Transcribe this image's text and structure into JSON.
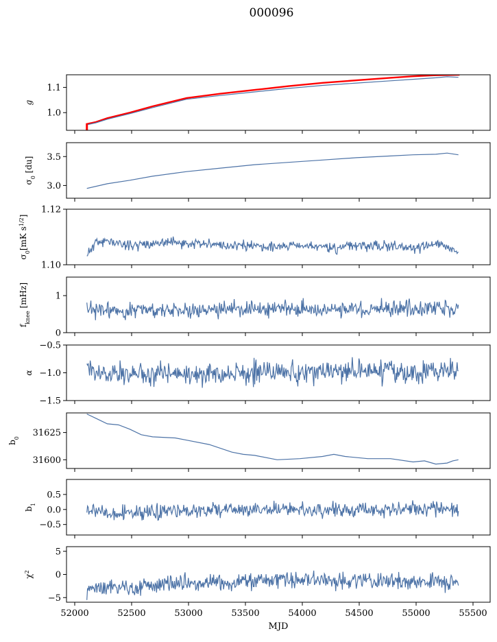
{
  "title": "000096",
  "chart_data": [
    {
      "type": "line",
      "ylabel": "g",
      "xlim": [
        51940,
        55680
      ],
      "ylim": [
        0.93,
        1.15
      ],
      "yticks": [
        1.0,
        1.1
      ],
      "ytick_labels": [
        "1.0",
        "1.1"
      ],
      "x_range": [
        52120,
        55410
      ],
      "series": [
        {
          "color": "#ff0000",
          "points": [
            [
              52120,
              0.955
            ],
            [
              52200,
              0.963
            ],
            [
              52300,
              0.978
            ],
            [
              52500,
              1.0
            ],
            [
              52700,
              1.025
            ],
            [
              53000,
              1.058
            ],
            [
              53300,
              1.075
            ],
            [
              53600,
              1.09
            ],
            [
              53900,
              1.105
            ],
            [
              54200,
              1.118
            ],
            [
              54500,
              1.128
            ],
            [
              54800,
              1.138
            ],
            [
              55000,
              1.144
            ],
            [
              55200,
              1.148
            ],
            [
              55410,
              1.15
            ]
          ]
        },
        {
          "color": "#4c72a6",
          "points": [
            [
              52120,
              0.952
            ],
            [
              52200,
              0.96
            ],
            [
              52300,
              0.974
            ],
            [
              52500,
              0.996
            ],
            [
              52700,
              1.02
            ],
            [
              53000,
              1.053
            ],
            [
              53300,
              1.068
            ],
            [
              53600,
              1.082
            ],
            [
              53900,
              1.096
            ],
            [
              54200,
              1.108
            ],
            [
              54500,
              1.117
            ],
            [
              54800,
              1.126
            ],
            [
              55000,
              1.132
            ],
            [
              55200,
              1.138
            ],
            [
              55300,
              1.142
            ],
            [
              55400,
              1.14
            ]
          ]
        }
      ]
    },
    {
      "type": "line",
      "ylabel": "σ0 [du]",
      "xlim": [
        51940,
        55680
      ],
      "ylim": [
        2.78,
        3.74
      ],
      "yticks": [
        3.0,
        3.5
      ],
      "ytick_labels": [
        "3.0",
        "3.5"
      ],
      "series": [
        {
          "color": "#4c72a6",
          "points": [
            [
              52120,
              2.95
            ],
            [
              52300,
              3.03
            ],
            [
              52500,
              3.09
            ],
            [
              52700,
              3.16
            ],
            [
              53000,
              3.24
            ],
            [
              53300,
              3.3
            ],
            [
              53600,
              3.36
            ],
            [
              53900,
              3.4
            ],
            [
              54200,
              3.44
            ],
            [
              54500,
              3.48
            ],
            [
              54800,
              3.51
            ],
            [
              55000,
              3.53
            ],
            [
              55200,
              3.54
            ],
            [
              55300,
              3.56
            ],
            [
              55400,
              3.53
            ]
          ]
        }
      ]
    },
    {
      "type": "line",
      "ylabel": "σ0[mK s1/2]",
      "xlim": [
        51940,
        55680
      ],
      "ylim": [
        1.1,
        1.12
      ],
      "yticks": [
        1.1,
        1.12
      ],
      "ytick_labels": [
        "1.10",
        "1.12"
      ],
      "series": [
        {
          "color": "#4c72a6",
          "noisy": true,
          "seed": 11,
          "amplitude": 0.0009,
          "points": [
            [
              52120,
              1.1035
            ],
            [
              52200,
              1.108
            ],
            [
              52300,
              1.1085
            ],
            [
              52500,
              1.107
            ],
            [
              52800,
              1.108
            ],
            [
              53100,
              1.1075
            ],
            [
              53400,
              1.107
            ],
            [
              53700,
              1.1065
            ],
            [
              54000,
              1.107
            ],
            [
              54300,
              1.106
            ],
            [
              54500,
              1.107
            ],
            [
              54800,
              1.1068
            ],
            [
              55000,
              1.1055
            ],
            [
              55200,
              1.108
            ],
            [
              55400,
              1.104
            ]
          ]
        }
      ]
    },
    {
      "type": "line",
      "ylabel": "fknee [mHz]",
      "xlim": [
        51940,
        55680
      ],
      "ylim": [
        0,
        1.5
      ],
      "yticks": [
        0,
        1
      ],
      "ytick_labels": [
        "0",
        "1"
      ],
      "series": [
        {
          "color": "#4c72a6",
          "noisy": true,
          "seed": 23,
          "amplitude": 0.11,
          "points": [
            [
              52120,
              0.6
            ],
            [
              53000,
              0.62
            ],
            [
              54000,
              0.64
            ],
            [
              55000,
              0.65
            ],
            [
              55400,
              0.62
            ]
          ]
        }
      ]
    },
    {
      "type": "line",
      "ylabel": "α",
      "xlim": [
        51940,
        55680
      ],
      "ylim": [
        -1.5,
        -0.5
      ],
      "yticks": [
        -1.5,
        -1.0,
        -0.5
      ],
      "ytick_labels": [
        "−1.5",
        "−1.0",
        "−0.5"
      ],
      "series": [
        {
          "color": "#4c72a6",
          "noisy": true,
          "seed": 37,
          "amplitude": 0.1,
          "points": [
            [
              52120,
              -1.0
            ],
            [
              53000,
              -1.02
            ],
            [
              54000,
              -1.0
            ],
            [
              55400,
              -0.98
            ]
          ]
        }
      ]
    },
    {
      "type": "line",
      "ylabel": "b0",
      "xlim": [
        51940,
        55680
      ],
      "ylim": [
        31592,
        31643
      ],
      "yticks": [
        31600,
        31625
      ],
      "ytick_labels": [
        "31600",
        "31625"
      ],
      "series": [
        {
          "color": "#4c72a6",
          "points": [
            [
              52120,
              31642
            ],
            [
              52200,
              31638
            ],
            [
              52300,
              31633
            ],
            [
              52400,
              31632
            ],
            [
              52500,
              31628
            ],
            [
              52600,
              31623
            ],
            [
              52700,
              31621
            ],
            [
              52900,
              31620
            ],
            [
              53000,
              31618
            ],
            [
              53200,
              31614
            ],
            [
              53400,
              31607
            ],
            [
              53500,
              31605
            ],
            [
              53600,
              31604
            ],
            [
              53800,
              31600
            ],
            [
              54000,
              31601
            ],
            [
              54200,
              31603
            ],
            [
              54300,
              31605
            ],
            [
              54400,
              31603
            ],
            [
              54600,
              31601
            ],
            [
              54800,
              31601
            ],
            [
              55000,
              31598
            ],
            [
              55100,
              31599
            ],
            [
              55200,
              31596
            ],
            [
              55300,
              31597
            ],
            [
              55350,
              31599
            ],
            [
              55400,
              31600
            ]
          ]
        }
      ]
    },
    {
      "type": "line",
      "ylabel": "b1",
      "xlim": [
        51940,
        55680
      ],
      "ylim": [
        -0.85,
        1.0
      ],
      "yticks": [
        -0.5,
        0.0,
        0.5
      ],
      "ytick_labels": [
        "−0.5",
        "0.0",
        "0.5"
      ],
      "series": [
        {
          "color": "#4c72a6",
          "noisy": true,
          "seed": 53,
          "amplitude": 0.12,
          "points": [
            [
              52120,
              0.05
            ],
            [
              52300,
              -0.15
            ],
            [
              52600,
              -0.1
            ],
            [
              53000,
              -0.05
            ],
            [
              53500,
              0.0
            ],
            [
              54000,
              0.0
            ],
            [
              54500,
              -0.05
            ],
            [
              55000,
              0.05
            ],
            [
              55400,
              0.0
            ]
          ]
        }
      ]
    },
    {
      "type": "line",
      "ylabel": "χ2",
      "xlabel": "MJD",
      "xlim": [
        51940,
        55680
      ],
      "ylim": [
        -6,
        6
      ],
      "yticks": [
        -5,
        0,
        5
      ],
      "ytick_labels": [
        "−5",
        "0",
        "5"
      ],
      "xticks": [
        52000,
        52500,
        53000,
        53500,
        54000,
        54500,
        55000,
        55500
      ],
      "xtick_labels": [
        "52000",
        "52500",
        "53000",
        "53500",
        "54000",
        "54500",
        "55000",
        "55500"
      ],
      "series": [
        {
          "color": "#4c72a6",
          "noisy": true,
          "seed": 71,
          "amplitude": 0.9,
          "points": [
            [
              52120,
              -3.0
            ],
            [
              52300,
              -2.8
            ],
            [
              52600,
              -2.5
            ],
            [
              53000,
              -2.0
            ],
            [
              53500,
              -1.5
            ],
            [
              54000,
              -1.2
            ],
            [
              54500,
              -1.3
            ],
            [
              55000,
              -1.5
            ],
            [
              55400,
              -1.8
            ]
          ]
        }
      ]
    }
  ]
}
